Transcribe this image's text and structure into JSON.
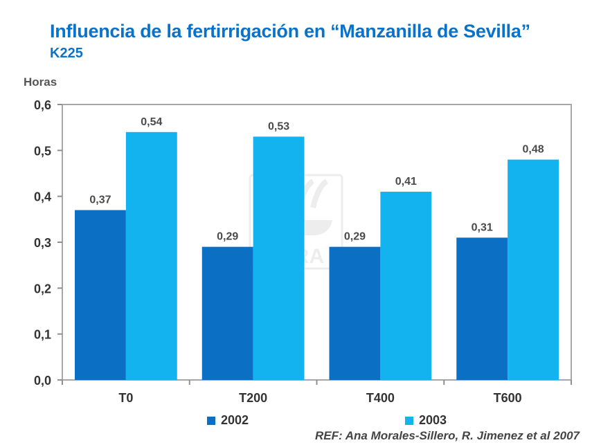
{
  "page": {
    "title": "Influencia de la fertirrigación en “Manzanilla de Sevilla”",
    "subtitle": "K225",
    "reference": "REF: Ana Morales-Sillero,  R. Jimenez  et al 2007",
    "watermark": "YARA"
  },
  "chart_data": {
    "type": "bar",
    "title": "Influencia de la fertirrigación en “Manzanilla de Sevilla”",
    "subtitle": "K225",
    "xlabel": "",
    "ylabel": "Horas",
    "ylim": [
      0,
      0.6
    ],
    "yticks": [
      0.0,
      0.1,
      0.2,
      0.3,
      0.4,
      0.5,
      0.6
    ],
    "ytick_labels": [
      "0,0",
      "0,1",
      "0,2",
      "0,3",
      "0,4",
      "0,5",
      "0,6"
    ],
    "categories": [
      "T0",
      "T200",
      "T400",
      "T600"
    ],
    "series": [
      {
        "name": "2002",
        "color": "#0b70c4",
        "values": [
          0.37,
          0.29,
          0.29,
          0.31
        ],
        "labels": [
          "0,37",
          "0,29",
          "0,29",
          "0,31"
        ]
      },
      {
        "name": "2003",
        "color": "#12b3ef",
        "values": [
          0.54,
          0.53,
          0.41,
          0.48
        ],
        "labels": [
          "0,54",
          "0,53",
          "0,41",
          "0,48"
        ]
      }
    ],
    "legend_position": "bottom",
    "grid": false
  }
}
